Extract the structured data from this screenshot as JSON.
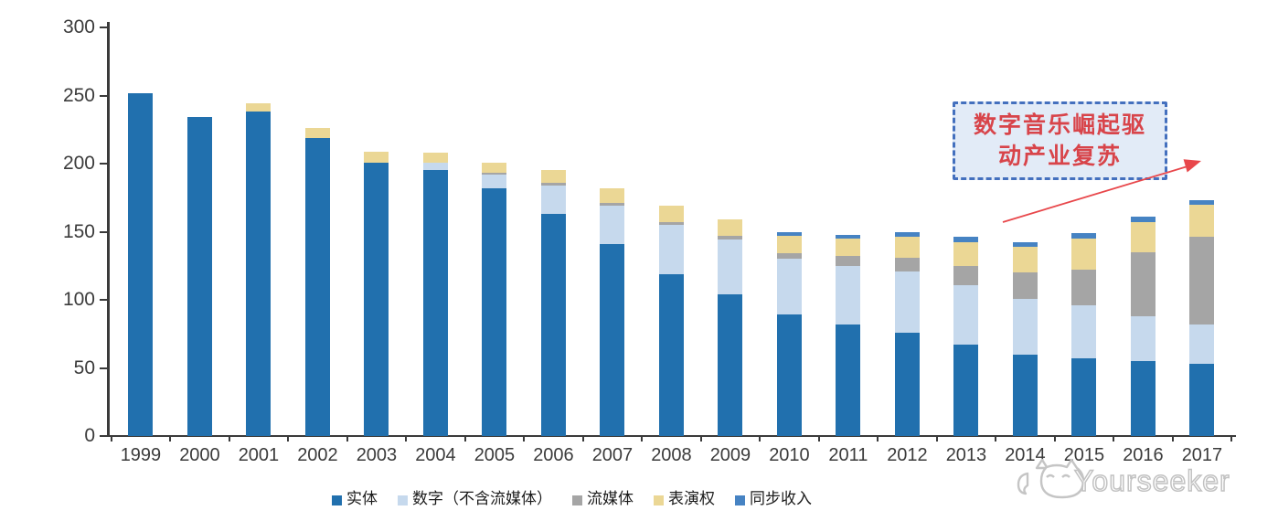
{
  "chart_data": {
    "type": "bar",
    "stacked": true,
    "unit_note": "",
    "categories": [
      "1999",
      "2000",
      "2001",
      "2002",
      "2003",
      "2004",
      "2005",
      "2006",
      "2007",
      "2008",
      "2009",
      "2010",
      "2011",
      "2012",
      "2013",
      "2014",
      "2015",
      "2016",
      "2017"
    ],
    "series": [
      {
        "key": "physical",
        "name": "实体",
        "color": "#2170ae",
        "values": [
          252,
          234,
          238,
          219,
          201,
          195,
          182,
          163,
          141,
          119,
          104,
          89,
          82,
          76,
          67,
          60,
          57,
          55,
          53
        ]
      },
      {
        "key": "digital-excl-streaming",
        "name": "数字（不含流媒体）",
        "color": "#c6d9ed",
        "values": [
          0,
          0,
          0,
          0,
          0,
          6,
          10,
          21,
          28,
          36,
          40,
          41,
          43,
          45,
          44,
          41,
          39,
          33,
          29
        ]
      },
      {
        "key": "streaming",
        "name": "流媒体",
        "color": "#a5a5a5",
        "values": [
          0,
          0,
          0,
          0,
          0,
          0,
          1,
          2,
          2,
          2,
          3,
          4,
          7,
          10,
          14,
          19,
          26,
          47,
          64
        ]
      },
      {
        "key": "performance-rights",
        "name": "表演权",
        "color": "#ebd795",
        "values": [
          0,
          0,
          6,
          7,
          8,
          7,
          8,
          9,
          11,
          12,
          12,
          13,
          13,
          15,
          17,
          19,
          23,
          22,
          24
        ]
      },
      {
        "key": "sync-revenue",
        "name": "同步收入",
        "color": "#4683c3",
        "values": [
          0,
          0,
          0,
          0,
          0,
          0,
          0,
          0,
          0,
          0,
          0,
          3,
          3,
          4,
          4,
          3,
          4,
          4,
          3
        ]
      }
    ],
    "totals": [
      252,
      234,
      244,
      226,
      209,
      208,
      201,
      195,
      182,
      169,
      159,
      150,
      148,
      150,
      146,
      142,
      149,
      161,
      173
    ],
    "ylim": [
      0,
      300
    ],
    "y_ticks": [
      0,
      50,
      100,
      150,
      200,
      250,
      300
    ],
    "grid": false,
    "legend_position": "bottom",
    "axis_color": "#3a3a3a"
  },
  "annotation": {
    "line1": "数字音乐崛起驱",
    "line2": "动产业复苏",
    "box_fill": "#e2ebf7",
    "border_color": "#4470be",
    "text_color": "#d8444a",
    "arrow_color": "#e8474b"
  },
  "watermark": {
    "text": "Yourseeker",
    "color": "#c5c5c5"
  }
}
